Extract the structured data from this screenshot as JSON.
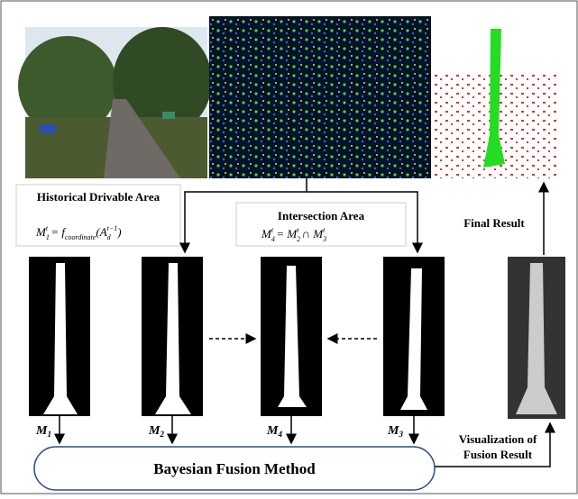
{
  "historical": {
    "title": "Historical Drivable Area",
    "formula": [
      "M",
      "1",
      "t",
      " = f",
      "coordinate",
      "(",
      "A",
      "d",
      "t−1",
      ")"
    ]
  },
  "intersection": {
    "title": "Intersection Area",
    "formula": [
      "M",
      "4",
      "t",
      " = M",
      "2",
      "t",
      " ∩ M",
      "3",
      "t"
    ]
  },
  "final_result": "Final Result",
  "masks": [
    {
      "base": "M",
      "sub": "1"
    },
    {
      "base": "M",
      "sub": "2"
    },
    {
      "base": "M",
      "sub": "4"
    },
    {
      "base": "M",
      "sub": "3"
    }
  ],
  "fusion": "Bayesian Fusion Method",
  "visualization": [
    "Visualization of",
    "Fusion Result"
  ]
}
